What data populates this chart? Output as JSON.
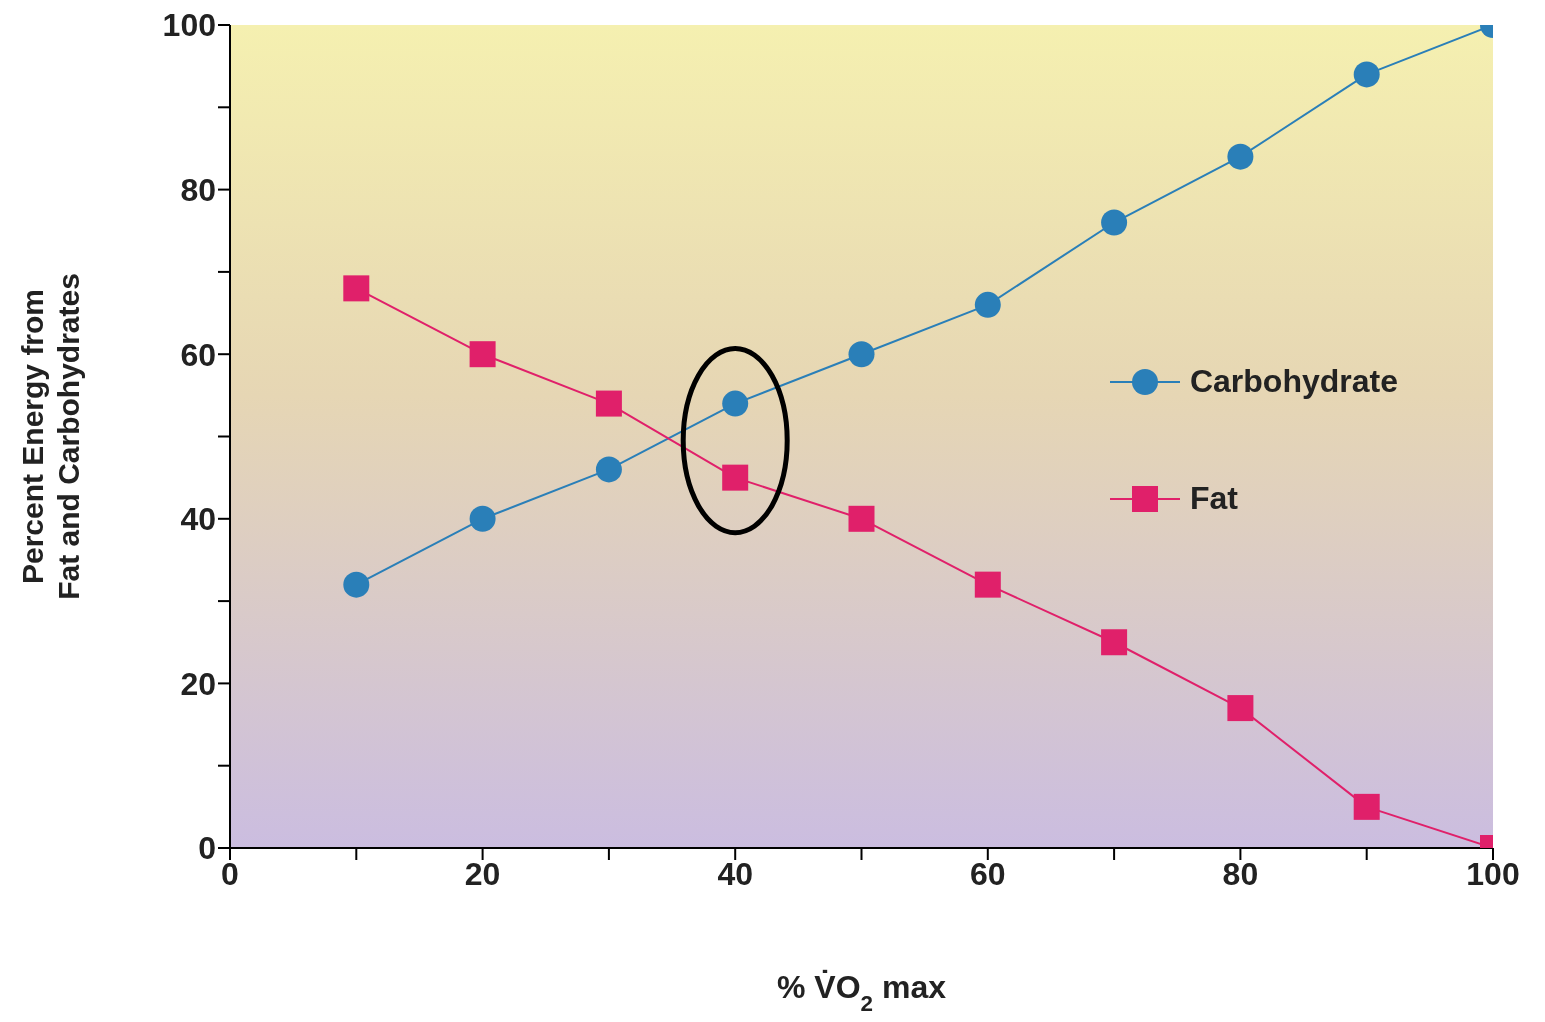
{
  "chart_data": {
    "type": "line",
    "xlabel": "% V̇O$_{2}$ max",
    "ylabel": "Percent Energy from\nFat and Carbohydrates",
    "x": [
      10,
      20,
      30,
      40,
      50,
      60,
      70,
      80,
      90,
      100
    ],
    "series": [
      {
        "name": "Carbohydrate",
        "color": "#2a7fb8",
        "marker": "circle",
        "values": [
          32,
          40,
          46,
          54,
          60,
          66,
          76,
          84,
          94,
          100
        ]
      },
      {
        "name": "Fat",
        "color": "#e0206a",
        "marker": "square",
        "values": [
          68,
          60,
          54,
          45,
          40,
          32,
          25,
          17,
          5,
          0
        ]
      }
    ],
    "xlim": [
      0,
      100
    ],
    "xticks": [
      0,
      {
        "value": 10,
        "label": null
      },
      20,
      {
        "value": 30,
        "label": null
      },
      40,
      {
        "value": 50,
        "label": null
      },
      60,
      {
        "value": 70,
        "label": null
      },
      80,
      {
        "value": 90,
        "label": null
      },
      100
    ],
    "ylim": [
      0,
      100
    ],
    "yticks": [
      0,
      {
        "value": 10,
        "label": null
      },
      20,
      {
        "value": 30,
        "label": null
      },
      40,
      {
        "value": 50,
        "label": null
      },
      60,
      {
        "value": 70,
        "label": null
      },
      80,
      {
        "value": 90,
        "label": null
      },
      100
    ],
    "grid": false,
    "legend": "right",
    "line_style": "solid"
  }
}
